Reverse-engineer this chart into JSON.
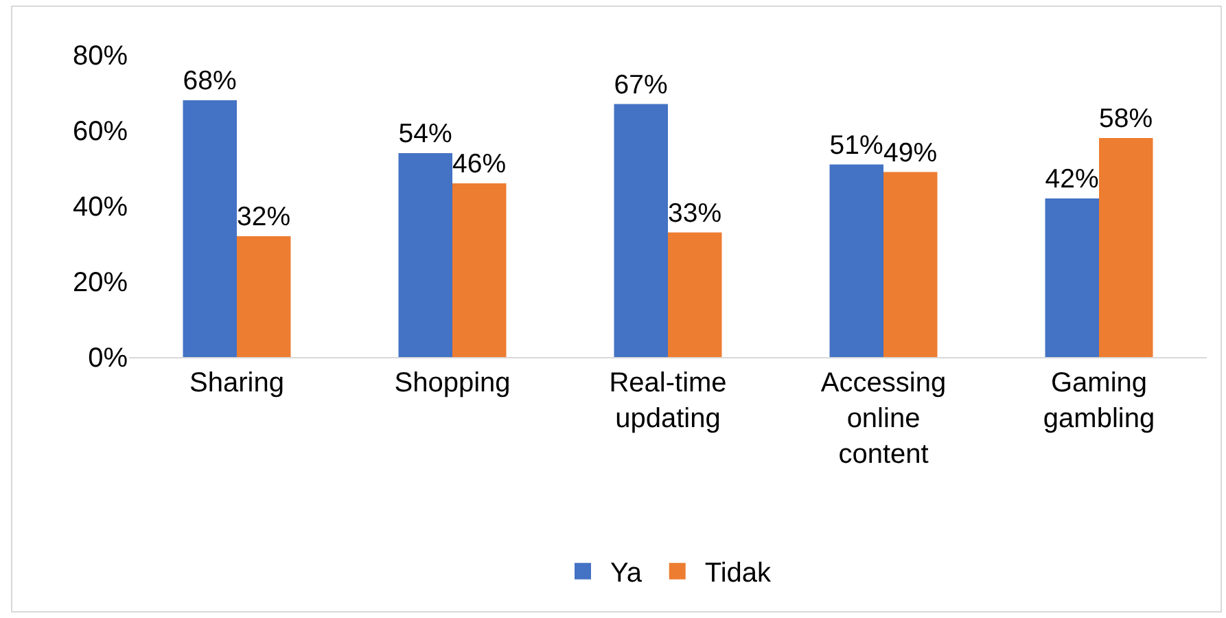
{
  "chart_data": {
    "type": "bar",
    "categories": [
      "Sharing",
      "Shopping",
      "Real-time updating",
      "Accessing online content",
      "Gaming gambling"
    ],
    "series": [
      {
        "name": "Ya",
        "color": "#4472c4",
        "values": [
          68,
          54,
          67,
          51,
          42
        ],
        "value_labels": [
          "68%",
          "54%",
          "67%",
          "51%",
          "42%"
        ]
      },
      {
        "name": "Tidak",
        "color": "#ed7d31",
        "values": [
          32,
          46,
          33,
          49,
          58
        ],
        "value_labels": [
          "32%",
          "46%",
          "33%",
          "49%",
          "58%"
        ]
      }
    ],
    "ylim": [
      0,
      80
    ],
    "yticks": [
      {
        "value": 0,
        "label": "0%"
      },
      {
        "value": 20,
        "label": "20%"
      },
      {
        "value": 40,
        "label": "40%"
      },
      {
        "value": 60,
        "label": "60%"
      },
      {
        "value": 80,
        "label": "80%"
      }
    ],
    "grid": false,
    "legend": "bottom"
  }
}
